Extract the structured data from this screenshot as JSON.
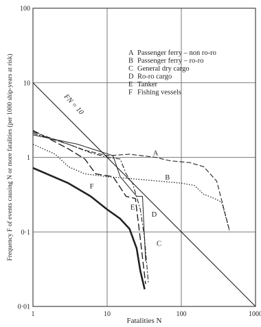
{
  "chart_data": {
    "type": "line",
    "xscale": "log",
    "yscale": "log",
    "xlabel": "Fatalities N",
    "ylabel": "Frequency F of events causing N or more fatalities (per 1000 ship-years at risk)",
    "xlim": [
      1,
      1000
    ],
    "ylim": [
      0.01,
      100
    ],
    "grid": true,
    "x_ticks": [
      "1",
      "10",
      "100",
      "1000"
    ],
    "y_ticks": [
      "100",
      "10",
      "1",
      "0·1",
      "0·01"
    ],
    "reference_line": {
      "label": "FN = 10",
      "points": [
        [
          1,
          10
        ],
        [
          1000,
          0.01
        ]
      ]
    },
    "legend_position": "top-right",
    "legend": [
      {
        "key": "A",
        "text": "Passenger ferry – non ro-ro"
      },
      {
        "key": "B",
        "text": "Passenger ferry – ro-ro"
      },
      {
        "key": "C",
        "text": "General dry cargo"
      },
      {
        "key": "D",
        "text": "Ro-ro cargo"
      },
      {
        "key": "E",
        "text": "Tanker"
      },
      {
        "key": "F",
        "text": "Fishing vessels"
      }
    ],
    "series": [
      {
        "name": "A",
        "style": "dashed",
        "label_pos": [
          45,
          1.06
        ],
        "points": [
          [
            1,
            2.2
          ],
          [
            3,
            1.5
          ],
          [
            5,
            1.25
          ],
          [
            10,
            1.05
          ],
          [
            20,
            1.1
          ],
          [
            30,
            1.05
          ],
          [
            45,
            1.0
          ],
          [
            70,
            0.9
          ],
          [
            130,
            0.85
          ],
          [
            200,
            0.75
          ],
          [
            300,
            0.48
          ],
          [
            440,
            0.11
          ]
        ]
      },
      {
        "name": "B",
        "style": "dotted",
        "label_pos": [
          65,
          0.5
        ],
        "points": [
          [
            1,
            1.5
          ],
          [
            2,
            1.1
          ],
          [
            3,
            0.75
          ],
          [
            5,
            0.6
          ],
          [
            10,
            0.55
          ],
          [
            20,
            0.52
          ],
          [
            50,
            0.48
          ],
          [
            100,
            0.45
          ],
          [
            150,
            0.42
          ],
          [
            200,
            0.32
          ],
          [
            280,
            0.28
          ],
          [
            350,
            0.25
          ],
          [
            450,
            0.1
          ]
        ]
      },
      {
        "name": "C",
        "style": "dash-dot",
        "label_pos": [
          50,
          0.065
        ],
        "points": [
          [
            1,
            2.1
          ],
          [
            3,
            1.5
          ],
          [
            6,
            1.15
          ],
          [
            10,
            1.0
          ],
          [
            15,
            0.95
          ],
          [
            18,
            0.6
          ],
          [
            22,
            0.45
          ],
          [
            28,
            0.2
          ],
          [
            32,
            0.08
          ],
          [
            36,
            0.02
          ]
        ]
      },
      {
        "name": "D",
        "style": "solid-thin",
        "label_pos": [
          43,
          0.16
        ],
        "points": [
          [
            1,
            2.0
          ],
          [
            4,
            1.5
          ],
          [
            8,
            1.2
          ],
          [
            12,
            1.05
          ],
          [
            15,
            0.55
          ],
          [
            25,
            0.3
          ],
          [
            30,
            0.3
          ],
          [
            33,
            0.04
          ]
        ]
      },
      {
        "name": "E",
        "style": "long-dash",
        "label_pos": [
          22,
          0.2
        ],
        "points": [
          [
            1,
            2.3
          ],
          [
            3,
            1.3
          ],
          [
            5,
            0.95
          ],
          [
            7,
            0.6
          ],
          [
            12,
            0.55
          ],
          [
            18,
            0.3
          ],
          [
            24,
            0.28
          ],
          [
            28,
            0.08
          ],
          [
            33,
            0.02
          ]
        ]
      },
      {
        "name": "F",
        "style": "solid-bold",
        "label_pos": [
          6.2,
          0.38
        ],
        "points": [
          [
            1,
            0.72
          ],
          [
            3,
            0.45
          ],
          [
            6,
            0.3
          ],
          [
            10,
            0.2
          ],
          [
            15,
            0.15
          ],
          [
            20,
            0.11
          ],
          [
            25,
            0.06
          ],
          [
            28,
            0.03
          ],
          [
            32,
            0.017
          ]
        ]
      }
    ]
  }
}
